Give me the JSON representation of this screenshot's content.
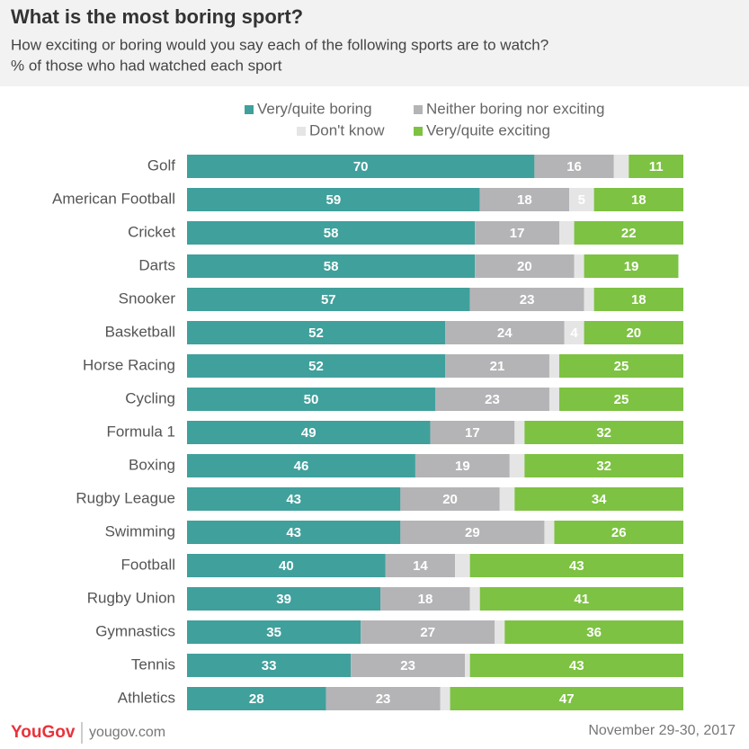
{
  "chart_data": {
    "type": "stacked-bar",
    "title": "What is the most boring sport?",
    "subtitle": "How exciting or boring would you say each of the following sports are to watch?",
    "note": "% of those who had watched each sport",
    "categories": [
      "Golf",
      "American Football",
      "Cricket",
      "Darts",
      "Snooker",
      "Basketball",
      "Horse Racing",
      "Cycling",
      "Formula 1",
      "Boxing",
      "Rugby League",
      "Swimming",
      "Football",
      "Rugby Union",
      "Gymnastics",
      "Tennis",
      "Athletics"
    ],
    "series": [
      {
        "name": "Very/quite boring",
        "color": "#40a09c",
        "values": [
          70,
          59,
          58,
          58,
          57,
          52,
          52,
          50,
          49,
          46,
          43,
          43,
          40,
          39,
          35,
          33,
          28
        ]
      },
      {
        "name": "Neither boring nor exciting",
        "color": "#b4b4b6",
        "values": [
          16,
          18,
          17,
          20,
          23,
          24,
          21,
          23,
          17,
          19,
          20,
          29,
          14,
          18,
          27,
          23,
          23
        ]
      },
      {
        "name": "Don't know",
        "color": "#e5e5e5",
        "values": [
          3,
          5,
          3,
          2,
          2,
          4,
          2,
          2,
          2,
          3,
          3,
          2,
          3,
          2,
          2,
          1,
          2
        ],
        "value_labels": [
          null,
          "5",
          null,
          null,
          null,
          "4",
          null,
          null,
          null,
          null,
          null,
          null,
          null,
          null,
          null,
          null,
          null
        ]
      },
      {
        "name": "Very/quite exciting",
        "color": "#7dc242",
        "values": [
          11,
          18,
          22,
          19,
          18,
          20,
          25,
          25,
          32,
          32,
          34,
          26,
          43,
          41,
          36,
          43,
          47
        ]
      }
    ],
    "xlim": [
      0,
      100
    ],
    "logo": "YouGov",
    "website": "yougov.com",
    "date": "November 29-30, 2017"
  }
}
